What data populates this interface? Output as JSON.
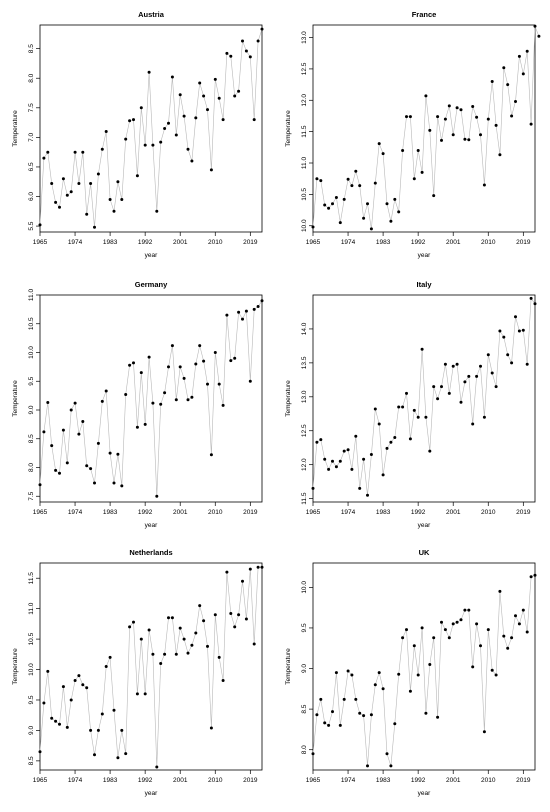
{
  "chart_data": [
    {
      "type": "line",
      "title": "Austria",
      "xlabel": "year",
      "ylabel": "Temperature",
      "xlim": [
        1965,
        2022
      ],
      "ylim": [
        5.4,
        8.9
      ],
      "x_ticks": [
        1965,
        1974,
        1983,
        1992,
        2001,
        2010,
        2019
      ],
      "y_ticks": [
        "5.5",
        "6.0",
        "6.5",
        "7.0",
        "7.5",
        "8.0",
        "8.5"
      ],
      "y_tick_values": [
        5.5,
        6.0,
        6.5,
        7.0,
        7.5,
        8.0,
        8.5
      ],
      "x_start": 1965,
      "values": [
        5.52,
        6.65,
        6.75,
        6.22,
        5.9,
        5.82,
        6.3,
        6.02,
        6.08,
        6.75,
        6.22,
        6.75,
        5.7,
        6.22,
        5.48,
        6.38,
        6.8,
        7.1,
        5.95,
        5.75,
        6.25,
        5.95,
        6.97,
        7.28,
        7.3,
        6.35,
        7.5,
        6.87,
        8.1,
        6.87,
        5.75,
        6.92,
        7.15,
        7.24,
        8.02,
        7.04,
        7.72,
        7.36,
        6.8,
        6.6,
        7.33,
        7.92,
        7.7,
        7.47,
        6.45,
        7.98,
        7.66,
        7.3,
        8.42,
        8.37,
        7.7,
        7.78,
        8.63,
        8.46,
        8.36,
        7.3,
        8.63,
        8.83
      ]
    },
    {
      "type": "line",
      "title": "France",
      "xlabel": "year",
      "ylabel": "Temperature",
      "xlim": [
        1965,
        2022
      ],
      "ylim": [
        9.9,
        13.2
      ],
      "x_ticks": [
        1965,
        1974,
        1983,
        1992,
        2001,
        2010,
        2019
      ],
      "y_ticks": [
        "10.0",
        "10.5",
        "11.0",
        "11.5",
        "12.0",
        "12.5",
        "13.0"
      ],
      "y_tick_values": [
        10.0,
        10.5,
        11.0,
        11.5,
        12.0,
        12.5,
        13.0
      ],
      "x_start": 1965,
      "values": [
        9.98,
        10.75,
        10.72,
        10.33,
        10.28,
        10.35,
        10.45,
        10.05,
        10.42,
        10.74,
        10.64,
        10.87,
        10.64,
        10.12,
        10.35,
        9.95,
        10.68,
        11.31,
        11.15,
        10.35,
        10.07,
        10.42,
        10.22,
        11.2,
        11.74,
        11.74,
        10.75,
        11.2,
        10.85,
        12.07,
        11.52,
        10.48,
        11.74,
        11.36,
        11.7,
        11.91,
        11.45,
        11.88,
        11.85,
        11.38,
        11.37,
        11.9,
        11.73,
        11.45,
        10.65,
        11.7,
        12.3,
        11.6,
        11.13,
        12.52,
        12.25,
        11.75,
        11.98,
        12.7,
        12.42,
        12.78,
        11.62,
        13.18,
        13.02
      ]
    },
    {
      "type": "line",
      "title": "Germany",
      "xlabel": "year",
      "ylabel": "Temperature",
      "xlim": [
        1965,
        2022
      ],
      "ylim": [
        7.4,
        11.0
      ],
      "x_ticks": [
        1965,
        1974,
        1983,
        1992,
        2001,
        2010,
        2019
      ],
      "y_ticks": [
        "7.5",
        "8.0",
        "8.5",
        "9.0",
        "9.5",
        "10.0",
        "10.5",
        "11.0"
      ],
      "y_tick_values": [
        7.5,
        8.0,
        8.5,
        9.0,
        9.5,
        10.0,
        10.5,
        11.0
      ],
      "x_start": 1965,
      "values": [
        7.7,
        8.62,
        9.13,
        8.38,
        7.95,
        7.9,
        8.65,
        8.08,
        9.0,
        9.12,
        8.58,
        8.8,
        8.03,
        7.98,
        7.73,
        8.42,
        9.15,
        9.33,
        8.25,
        7.73,
        8.23,
        7.68,
        9.27,
        9.78,
        9.82,
        8.7,
        9.65,
        8.75,
        9.92,
        9.12,
        7.5,
        9.1,
        9.3,
        9.75,
        10.12,
        9.18,
        9.75,
        9.55,
        9.18,
        9.22,
        9.8,
        10.12,
        9.85,
        9.45,
        8.22,
        10.0,
        9.45,
        9.08,
        10.65,
        9.86,
        9.9,
        10.7,
        10.58,
        10.72,
        9.5,
        10.75,
        10.8,
        10.9
      ]
    },
    {
      "type": "line",
      "title": "Italy",
      "xlabel": "year",
      "ylabel": "Temperature",
      "xlim": [
        1965,
        2022
      ],
      "ylim": [
        11.45,
        14.5
      ],
      "x_ticks": [
        1965,
        1974,
        1983,
        1992,
        2001,
        2010,
        2019
      ],
      "y_ticks": [
        "11.5",
        "12.0",
        "12.5",
        "13.0",
        "13.5",
        "14.0"
      ],
      "y_tick_values": [
        11.5,
        12.0,
        12.5,
        13.0,
        13.5,
        14.0
      ],
      "x_start": 1965,
      "values": [
        11.65,
        12.33,
        12.37,
        12.08,
        11.93,
        12.05,
        11.97,
        12.05,
        12.2,
        12.22,
        11.93,
        12.42,
        11.65,
        12.08,
        11.55,
        12.15,
        12.82,
        12.6,
        11.85,
        12.24,
        12.33,
        12.4,
        12.85,
        12.85,
        13.05,
        12.38,
        12.8,
        12.7,
        13.7,
        12.7,
        12.2,
        13.15,
        12.97,
        13.15,
        13.48,
        13.05,
        13.45,
        13.48,
        12.92,
        13.22,
        13.3,
        12.6,
        13.3,
        13.45,
        12.7,
        13.62,
        13.35,
        13.15,
        13.97,
        13.88,
        13.62,
        13.5,
        14.18,
        13.97,
        13.98,
        13.48,
        14.45,
        14.37
      ]
    },
    {
      "type": "line",
      "title": "Netherlands",
      "xlabel": "year",
      "ylabel": "Temperature",
      "xlim": [
        1965,
        2022
      ],
      "ylim": [
        8.35,
        11.75
      ],
      "x_ticks": [
        1965,
        1974,
        1983,
        1992,
        2001,
        2010,
        2019
      ],
      "y_ticks": [
        "8.5",
        "9.0",
        "9.5",
        "10.0",
        "10.5",
        "11.0",
        "11.5"
      ],
      "y_tick_values": [
        8.5,
        9.0,
        9.5,
        10.0,
        10.5,
        11.0,
        11.5
      ],
      "x_start": 1965,
      "values": [
        8.65,
        9.45,
        9.97,
        9.2,
        9.15,
        9.1,
        9.72,
        9.05,
        9.5,
        9.82,
        9.9,
        9.75,
        9.7,
        9.0,
        8.6,
        9.0,
        9.27,
        10.05,
        10.2,
        9.33,
        8.55,
        9.0,
        8.62,
        10.7,
        10.78,
        9.6,
        10.5,
        9.6,
        10.65,
        10.25,
        8.4,
        10.1,
        10.25,
        10.85,
        10.85,
        10.25,
        10.68,
        10.5,
        10.27,
        10.4,
        10.6,
        11.05,
        10.8,
        10.38,
        9.04,
        10.9,
        10.2,
        9.82,
        11.6,
        10.92,
        10.7,
        10.9,
        11.45,
        10.83,
        11.65,
        10.42,
        11.68,
        11.68
      ]
    },
    {
      "type": "line",
      "title": "UK",
      "xlabel": "year",
      "ylabel": "Temperature",
      "xlim": [
        1965,
        2022
      ],
      "ylim": [
        7.75,
        10.3
      ],
      "x_ticks": [
        1965,
        1974,
        1983,
        1992,
        2001,
        2010,
        2019
      ],
      "y_ticks": [
        "8.0",
        "8.5",
        "9.0",
        "9.5",
        "10.0"
      ],
      "y_tick_values": [
        8.0,
        8.5,
        9.0,
        9.5,
        10.0
      ],
      "x_start": 1965,
      "values": [
        7.95,
        8.43,
        8.62,
        8.33,
        8.3,
        8.47,
        8.95,
        8.3,
        8.62,
        8.97,
        8.92,
        8.62,
        8.45,
        8.42,
        7.8,
        8.43,
        8.8,
        8.95,
        8.75,
        7.95,
        7.8,
        8.32,
        8.93,
        9.38,
        9.48,
        8.72,
        9.28,
        8.92,
        9.5,
        8.45,
        9.05,
        9.38,
        8.4,
        9.57,
        9.48,
        9.38,
        9.55,
        9.57,
        9.6,
        9.72,
        9.72,
        9.02,
        9.55,
        9.28,
        8.22,
        9.48,
        8.98,
        8.92,
        9.95,
        9.4,
        9.25,
        9.38,
        9.65,
        9.55,
        9.72,
        9.45,
        10.13,
        10.15
      ]
    }
  ]
}
